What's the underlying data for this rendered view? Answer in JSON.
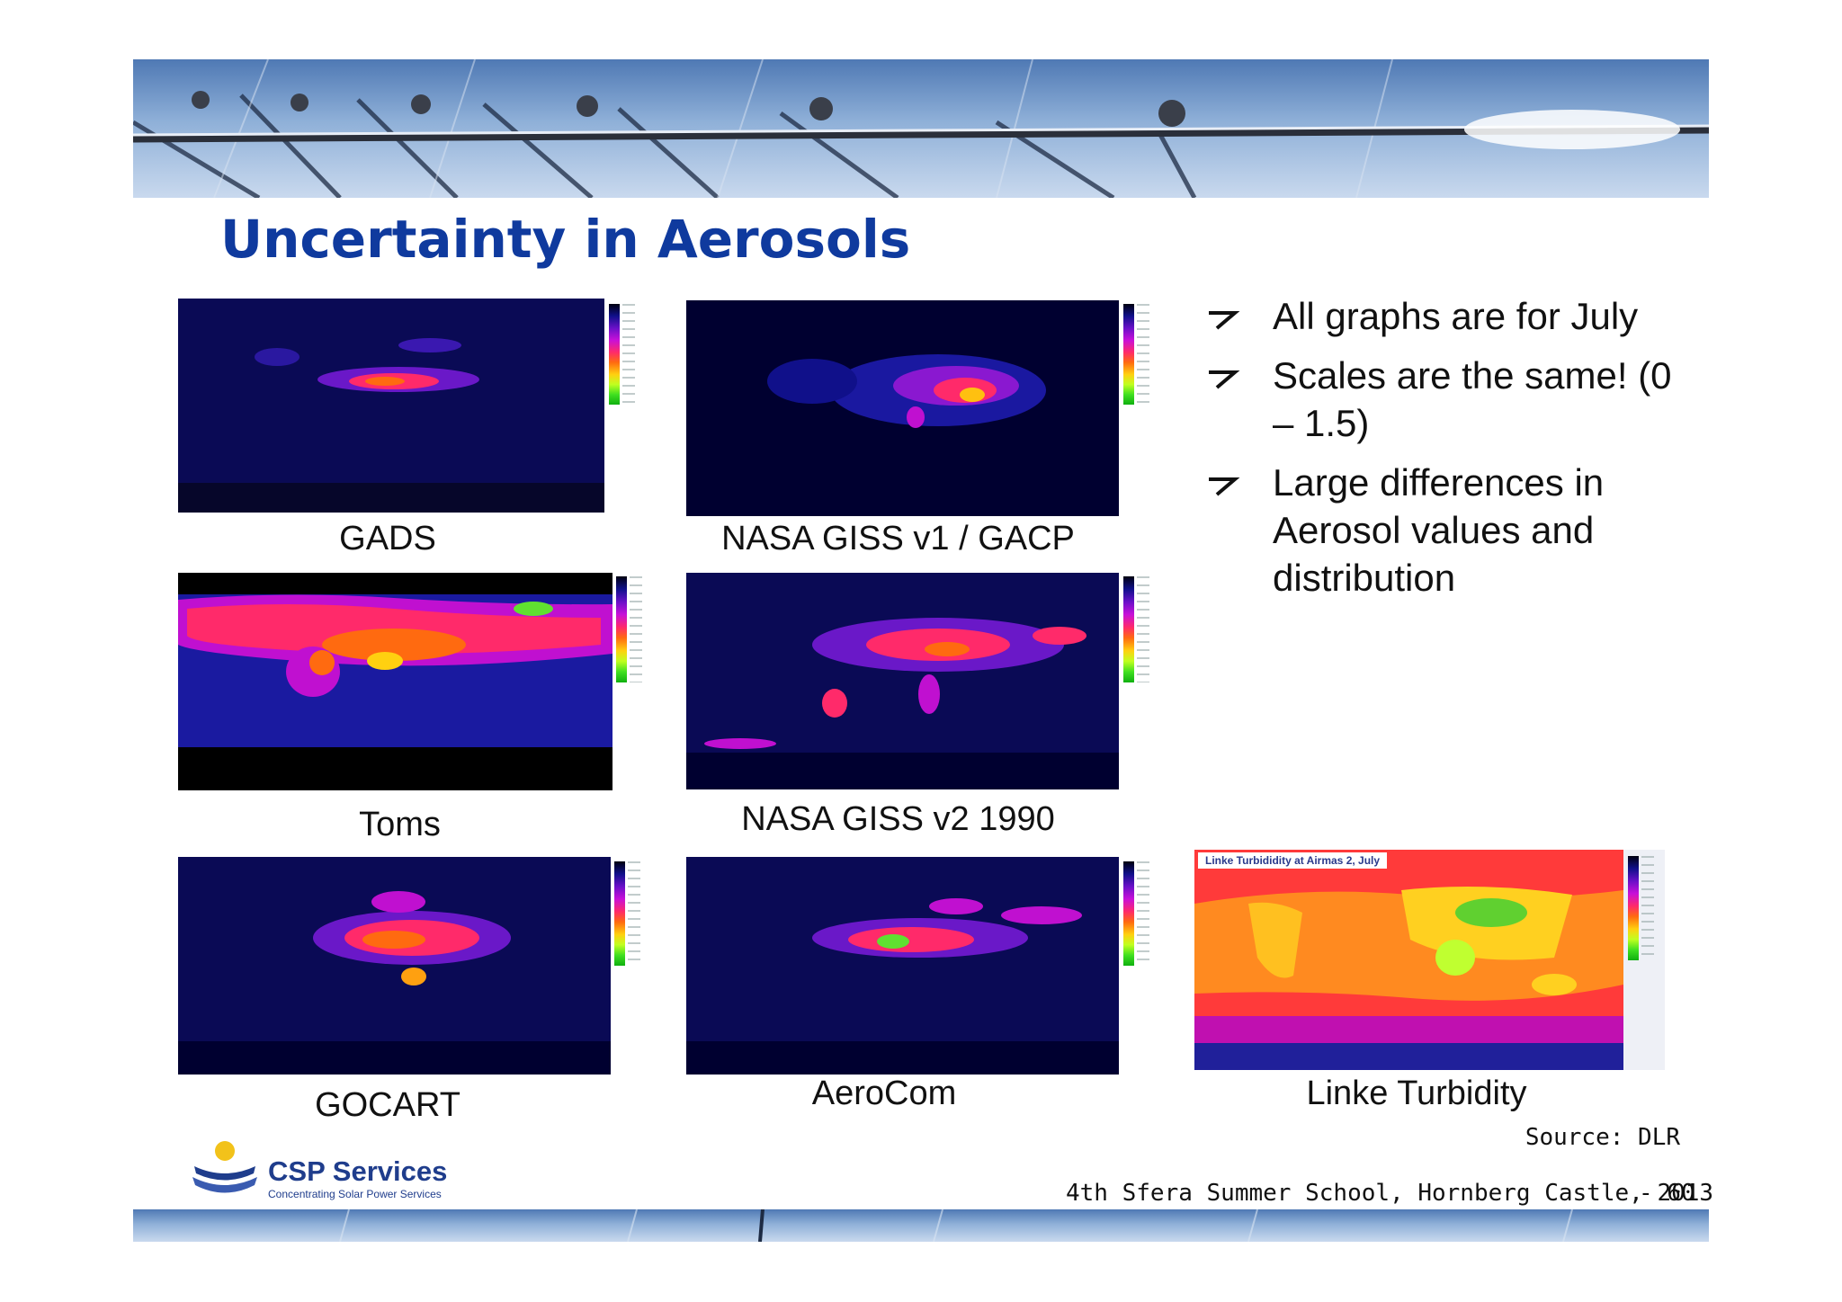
{
  "slide": {
    "title": "Uncertainty in Aerosols",
    "maps": [
      {
        "caption": "GADS"
      },
      {
        "caption": "NASA GISS v1 / GACP"
      },
      {
        "caption": "Toms"
      },
      {
        "caption": "NASA GISS v2 1990"
      },
      {
        "caption": "GOCART"
      },
      {
        "caption": "AeroCom"
      },
      {
        "caption": "Linke Turbidity",
        "inset_title": "Linke Turbididity at Airmas 2, July"
      }
    ],
    "bullets": [
      "All graphs are for July",
      "Scales are the same! (0 – 1.5)",
      "Large differences in Aerosol values and distribution"
    ],
    "source": "Source: DLR",
    "footer": "4th Sfera Summer School, Hornberg Castle, 2013",
    "page_number": "- 60",
    "logo": {
      "name": "CSP Services",
      "tagline": "Concentrating Solar Power Services"
    }
  }
}
